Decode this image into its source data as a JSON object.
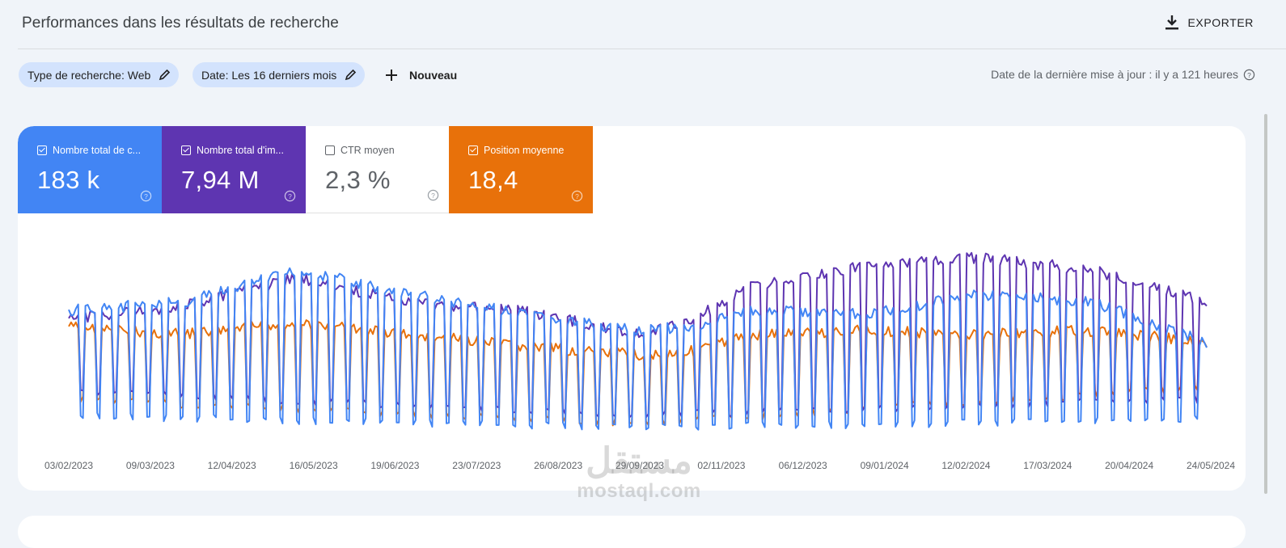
{
  "header": {
    "title": "Performances dans les résultats de recherche",
    "export_label": "EXPORTER"
  },
  "filters": {
    "search_type": "Type de recherche: Web",
    "date": "Date: Les 16 derniers mois",
    "new_label": "Nouveau",
    "last_update": "Date de la dernière mise à jour : il y a 121 heures"
  },
  "metrics": [
    {
      "label": "Nombre total de c...",
      "value": "183 k",
      "checked": true,
      "color": "#4285f4"
    },
    {
      "label": "Nombre total d'im...",
      "value": "7,94 M",
      "checked": true,
      "color": "#5e35b1"
    },
    {
      "label": "CTR moyen",
      "value": "2,3 %",
      "checked": false,
      "color": "#ffffff"
    },
    {
      "label": "Position moyenne",
      "value": "18,4",
      "checked": true,
      "color": "#e8710a"
    }
  ],
  "chart_data": {
    "type": "line",
    "x_tick_labels": [
      "03/02/2023",
      "09/03/2023",
      "12/04/2023",
      "16/05/2023",
      "19/06/2023",
      "23/07/2023",
      "26/08/2023",
      "29/09/2023",
      "02/11/2023",
      "06/12/2023",
      "09/01/2024",
      "12/02/2024",
      "17/03/2024",
      "20/04/2024",
      "24/05/2024"
    ],
    "x_range": [
      "03/02/2023",
      "28/05/2024"
    ],
    "grid": false,
    "legend": "none",
    "series": [
      {
        "color": "#e8710a"
      },
      {
        "color": "#5e35b1"
      },
      {
        "color": "#4285f4"
      }
    ],
    "weekly_shape_note_free": true
  },
  "watermark": {
    "arabic": "مستقل",
    "latin": "mostaql.com"
  }
}
